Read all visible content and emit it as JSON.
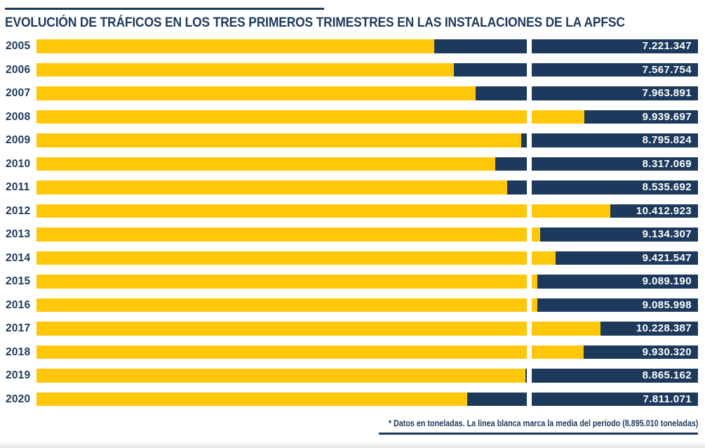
{
  "header": {
    "title": "EVOLUCIÓN DE TRÁFICOS EN LOS TRES PRIMEROS TRIMESTRES EN LAS INSTALACIONES DE LA APFSC"
  },
  "footer": {
    "note": "* Datos en toneladas. La línea blanca marca la media del período (8.895.010 toneladas)"
  },
  "colors": {
    "navy": "#1d3a5c",
    "yellow": "#ffc70a",
    "average_line": "#ffffff"
  },
  "chart_data": {
    "type": "bar",
    "orientation": "horizontal",
    "title": "EVOLUCIÓN DE TRÁFICOS EN LOS TRES PRIMEROS TRIMESTRES EN LAS INSTALACIONES DE LA APFSC",
    "unit": "toneladas",
    "categories": [
      "2005",
      "2006",
      "2007",
      "2008",
      "2009",
      "2010",
      "2011",
      "2012",
      "2013",
      "2014",
      "2015",
      "2016",
      "2017",
      "2018",
      "2019",
      "2020"
    ],
    "values": [
      7221347,
      7567754,
      7963891,
      9939697,
      8795824,
      8317069,
      8535692,
      10412923,
      9134307,
      9421547,
      9089190,
      9085998,
      10228387,
      9930320,
      8865162,
      7811071
    ],
    "value_labels": [
      "7.221.347",
      "7.567.754",
      "7.963.891",
      "9.939.697",
      "8.795.824",
      "8.317.069",
      "8.535.692",
      "10.412.923",
      "9.134.307",
      "9.421.547",
      "9.089.190",
      "9.085.998",
      "10.228.387",
      "9.930.320",
      "8.865.162",
      "7.811.071"
    ],
    "average": 8895010,
    "average_label": "8.895.010",
    "axis_range": [
      0,
      12000000
    ],
    "grid": false,
    "legend": "none",
    "bar_color": "#ffc70a",
    "remainder_color": "#1d3a5c",
    "average_marker_color": "#ffffff"
  }
}
